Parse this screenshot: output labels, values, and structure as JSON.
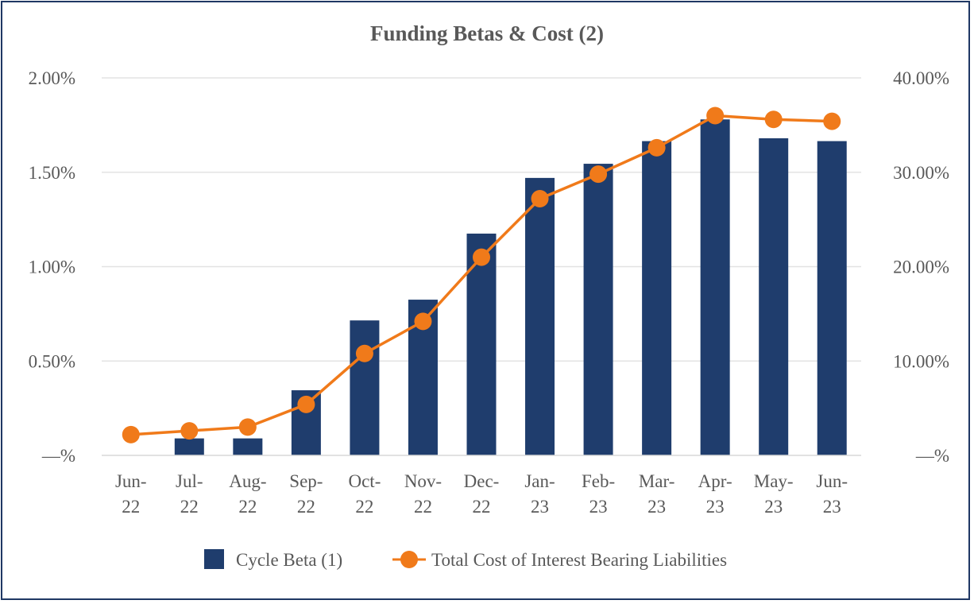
{
  "chart_data": {
    "type": "bar",
    "title": "Funding Betas & Cost (2)",
    "categories": [
      [
        "Jun-",
        "22"
      ],
      [
        "Jul-",
        "22"
      ],
      [
        "Aug-",
        "22"
      ],
      [
        "Sep-",
        "22"
      ],
      [
        "Oct-",
        "22"
      ],
      [
        "Nov-",
        "22"
      ],
      [
        "Dec-",
        "22"
      ],
      [
        "Jan-",
        "23"
      ],
      [
        "Feb-",
        "23"
      ],
      [
        "Mar-",
        "23"
      ],
      [
        "Apr-",
        "23"
      ],
      [
        "May-",
        "23"
      ],
      [
        "Jun-",
        "23"
      ]
    ],
    "left_axis": {
      "ticks": [
        "—%",
        "0.50%",
        "1.00%",
        "1.50%",
        "2.00%"
      ],
      "ylim": [
        0,
        2.0
      ]
    },
    "right_axis": {
      "ticks": [
        "—%",
        "10.00%",
        "20.00%",
        "30.00%",
        "40.00%"
      ],
      "ylim": [
        0,
        40.0
      ]
    },
    "grid": true,
    "legend_placement": "bottom",
    "series": [
      {
        "name": "Cycle Beta (1)",
        "kind": "bar",
        "axis": "right",
        "color": "#1f3d6d",
        "values": [
          0,
          1.8,
          1.8,
          6.9,
          14.3,
          16.5,
          23.5,
          29.4,
          30.9,
          33.3,
          35.6,
          33.6,
          33.3
        ]
      },
      {
        "name": "Total Cost of Interest Bearing Liabilities",
        "kind": "line",
        "axis": "left",
        "color": "#f07a1a",
        "values": [
          0.11,
          0.13,
          0.15,
          0.27,
          0.54,
          0.71,
          1.05,
          1.36,
          1.49,
          1.63,
          1.8,
          1.78,
          1.77
        ]
      }
    ]
  }
}
